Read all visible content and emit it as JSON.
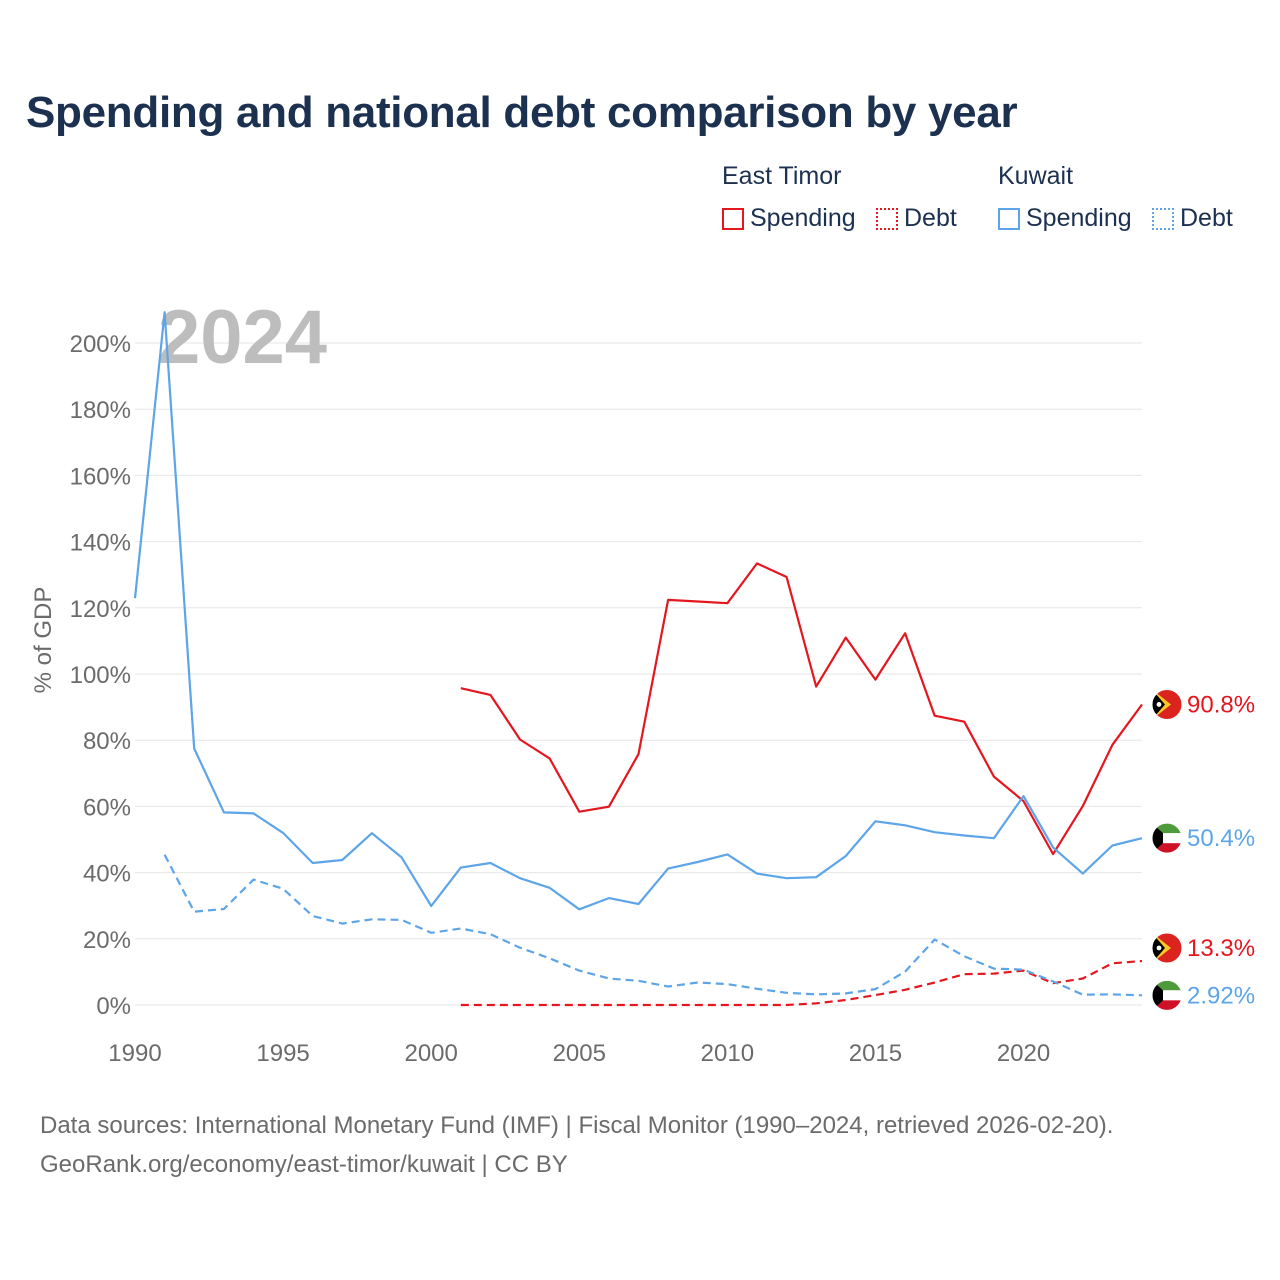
{
  "title": "Spending and national debt comparison by year",
  "legend": {
    "groups": [
      {
        "name": "East Timor",
        "items": [
          {
            "label": "Spending",
            "style": "solid"
          },
          {
            "label": "Debt",
            "style": "dotted"
          }
        ],
        "color": "#e4161e"
      },
      {
        "name": "Kuwait",
        "items": [
          {
            "label": "Spending",
            "style": "solid"
          },
          {
            "label": "Debt",
            "style": "dotted"
          }
        ],
        "color": "#5da5e8"
      }
    ]
  },
  "footer": {
    "line1": "Data sources: International Monetary Fund (IMF) | Fiscal Monitor (1990–2024, retrieved 2026-02-20).",
    "line2": "GeoRank.org/economy/east-timor/kuwait | CC BY"
  },
  "chart_data": {
    "type": "line",
    "title": "Spending and national debt comparison by year",
    "year_watermark": "2024",
    "ylabel": "% of GDP",
    "xlabel": "",
    "xlim": [
      1990,
      2024
    ],
    "ylim": [
      0,
      200
    ],
    "x_ticks": [
      "1990",
      "1995",
      "2000",
      "2005",
      "2010",
      "2015",
      "2020"
    ],
    "x_tick_values": [
      1990,
      1995,
      2000,
      2005,
      2010,
      2015,
      2020
    ],
    "y_ticks": [
      "0%",
      "20%",
      "40%",
      "60%",
      "80%",
      "100%",
      "120%",
      "140%",
      "160%",
      "180%",
      "200%"
    ],
    "y_tick_values": [
      0,
      20,
      40,
      60,
      80,
      100,
      120,
      140,
      160,
      180,
      200
    ],
    "series": [
      {
        "name": "East Timor Spending",
        "country": "East Timor",
        "metric": "Spending",
        "color": "#e4161e",
        "dash": "solid",
        "end_label": "90.8%",
        "flag": "east-timor",
        "points": [
          [
            2001,
            95.7
          ],
          [
            2002,
            93.7
          ],
          [
            2003,
            80.2
          ],
          [
            2004,
            74.5
          ],
          [
            2005,
            58.4
          ],
          [
            2006,
            59.9
          ],
          [
            2007,
            75.8
          ],
          [
            2008,
            122.4
          ],
          [
            2009,
            121.9
          ],
          [
            2010,
            121.4
          ],
          [
            2011,
            133.4
          ],
          [
            2012,
            129.3
          ],
          [
            2013,
            96.2
          ],
          [
            2014,
            111.0
          ],
          [
            2015,
            98.3
          ],
          [
            2016,
            112.3
          ],
          [
            2017,
            87.4
          ],
          [
            2018,
            85.6
          ],
          [
            2019,
            69.0
          ],
          [
            2020,
            61.6
          ],
          [
            2021,
            45.6
          ],
          [
            2022,
            60.1
          ],
          [
            2023,
            78.6
          ],
          [
            2024,
            90.8
          ]
        ]
      },
      {
        "name": "East Timor Debt",
        "country": "East Timor",
        "metric": "Debt",
        "color": "#e4161e",
        "dash": "dashed",
        "end_label": "13.3%",
        "flag": "east-timor",
        "points": [
          [
            2001,
            0
          ],
          [
            2002,
            0
          ],
          [
            2003,
            0
          ],
          [
            2004,
            0
          ],
          [
            2005,
            0
          ],
          [
            2006,
            0
          ],
          [
            2007,
            0
          ],
          [
            2008,
            0
          ],
          [
            2009,
            0
          ],
          [
            2010,
            0
          ],
          [
            2011,
            0
          ],
          [
            2012,
            0
          ],
          [
            2013,
            0.5
          ],
          [
            2014,
            1.5
          ],
          [
            2015,
            3.0
          ],
          [
            2016,
            4.6
          ],
          [
            2017,
            6.8
          ],
          [
            2018,
            9.3
          ],
          [
            2019,
            9.5
          ],
          [
            2020,
            10.4
          ],
          [
            2021,
            6.6
          ],
          [
            2022,
            8.0
          ],
          [
            2023,
            12.6
          ],
          [
            2024,
            13.3
          ]
        ]
      },
      {
        "name": "Kuwait Spending",
        "country": "Kuwait",
        "metric": "Spending",
        "color": "#5da5e8",
        "dash": "solid",
        "end_label": "50.4%",
        "flag": "kuwait",
        "points": [
          [
            1990,
            122.9
          ],
          [
            1991,
            209.3
          ],
          [
            1992,
            77.5
          ],
          [
            1993,
            58.2
          ],
          [
            1994,
            57.9
          ],
          [
            1995,
            52.0
          ],
          [
            1996,
            42.9
          ],
          [
            1997,
            43.8
          ],
          [
            1998,
            51.9
          ],
          [
            1999,
            44.6
          ],
          [
            2000,
            29.9
          ],
          [
            2001,
            41.5
          ],
          [
            2002,
            42.9
          ],
          [
            2003,
            38.3
          ],
          [
            2004,
            35.4
          ],
          [
            2005,
            28.9
          ],
          [
            2006,
            32.3
          ],
          [
            2007,
            30.5
          ],
          [
            2008,
            41.2
          ],
          [
            2009,
            43.2
          ],
          [
            2010,
            45.5
          ],
          [
            2011,
            39.7
          ],
          [
            2012,
            38.3
          ],
          [
            2013,
            38.6
          ],
          [
            2014,
            45.0
          ],
          [
            2015,
            55.5
          ],
          [
            2016,
            54.3
          ],
          [
            2017,
            52.2
          ],
          [
            2018,
            51.2
          ],
          [
            2019,
            50.4
          ],
          [
            2020,
            63.1
          ],
          [
            2021,
            47.6
          ],
          [
            2022,
            39.7
          ],
          [
            2023,
            48.2
          ],
          [
            2024,
            50.4
          ]
        ]
      },
      {
        "name": "Kuwait Debt",
        "country": "Kuwait",
        "metric": "Debt",
        "color": "#5da5e8",
        "dash": "dashed",
        "end_label": "2.92%",
        "flag": "kuwait",
        "points": [
          [
            1991,
            45.4
          ],
          [
            1992,
            28.2
          ],
          [
            1993,
            29.0
          ],
          [
            1994,
            37.9
          ],
          [
            1995,
            35.1
          ],
          [
            1996,
            26.9
          ],
          [
            1997,
            24.6
          ],
          [
            1998,
            25.9
          ],
          [
            1999,
            25.7
          ],
          [
            2000,
            21.8
          ],
          [
            2001,
            23.1
          ],
          [
            2002,
            21.4
          ],
          [
            2003,
            17.3
          ],
          [
            2004,
            14.1
          ],
          [
            2005,
            10.4
          ],
          [
            2006,
            8.0
          ],
          [
            2007,
            7.3
          ],
          [
            2008,
            5.6
          ],
          [
            2009,
            6.8
          ],
          [
            2010,
            6.3
          ],
          [
            2011,
            4.9
          ],
          [
            2012,
            3.7
          ],
          [
            2013,
            3.2
          ],
          [
            2014,
            3.5
          ],
          [
            2015,
            4.8
          ],
          [
            2016,
            10.1
          ],
          [
            2017,
            19.8
          ],
          [
            2018,
            14.7
          ],
          [
            2019,
            11.0
          ],
          [
            2020,
            10.7
          ],
          [
            2021,
            7.1
          ],
          [
            2022,
            3.1
          ],
          [
            2023,
            3.2
          ],
          [
            2024,
            2.92
          ]
        ]
      }
    ]
  }
}
